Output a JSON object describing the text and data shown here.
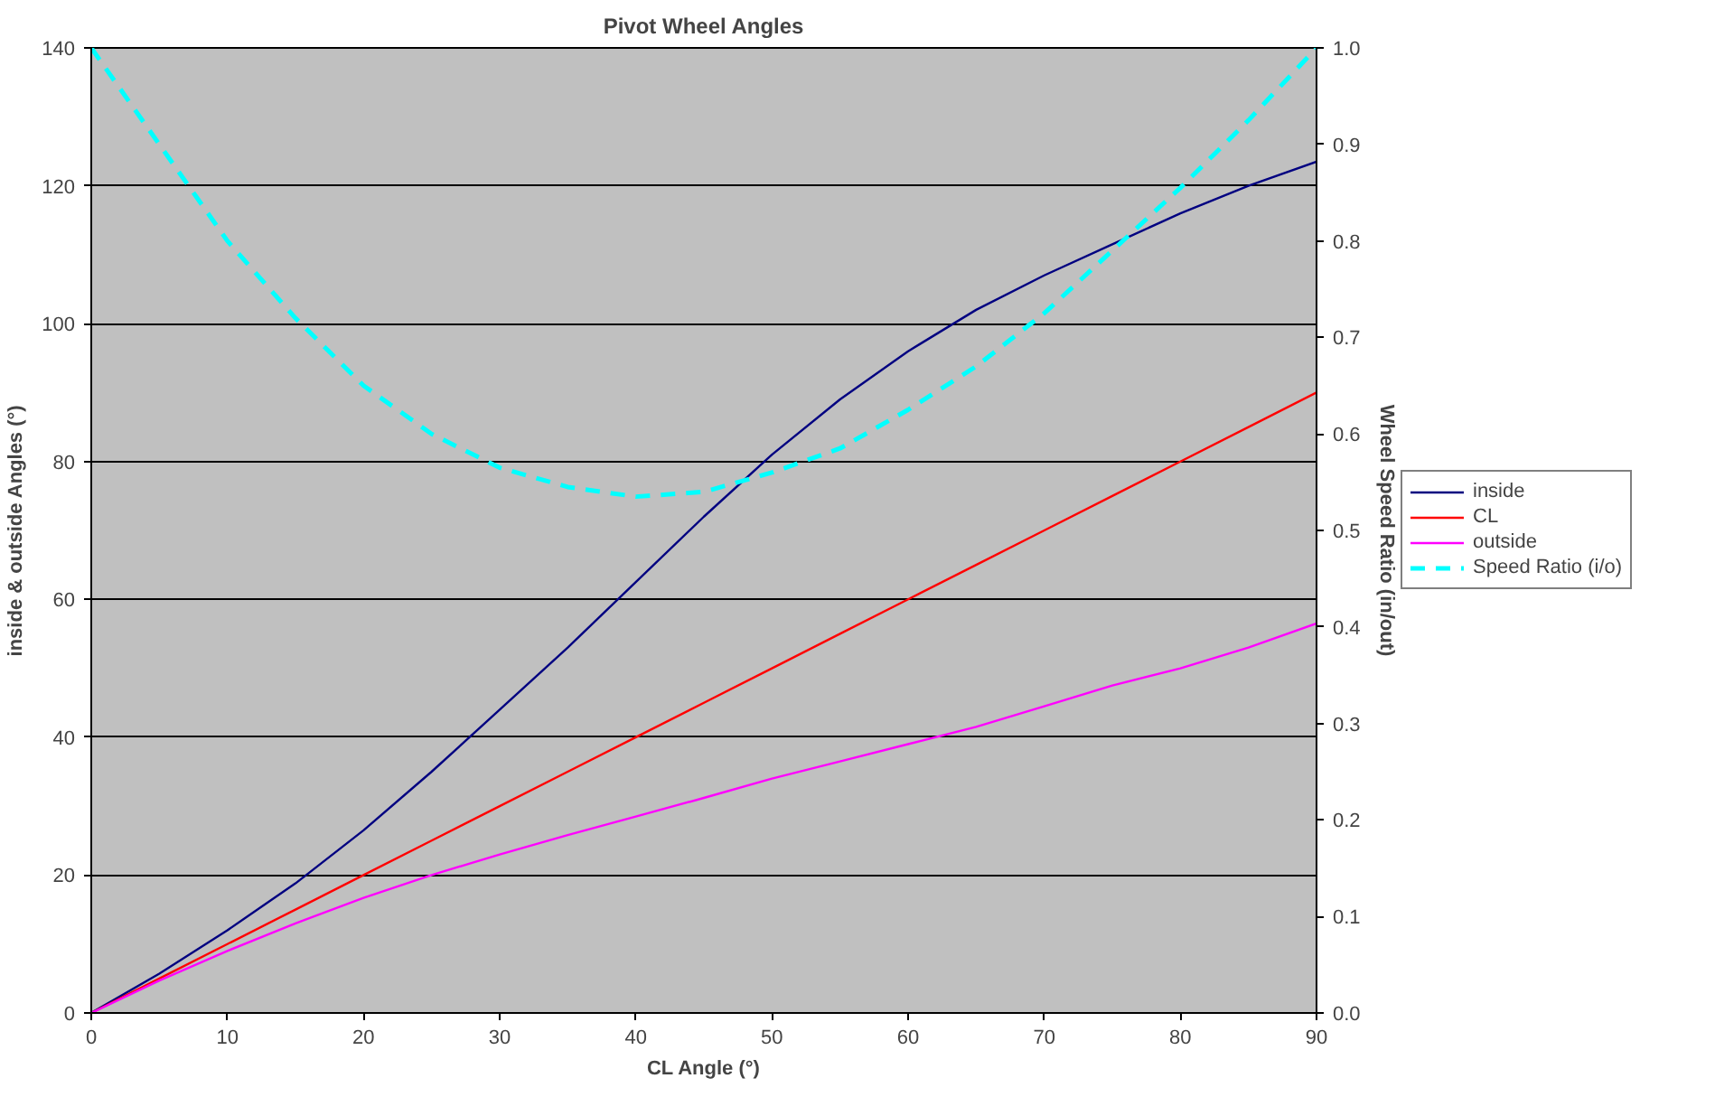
{
  "chart_data": {
    "type": "line",
    "title": "Pivot Wheel Angles",
    "xlabel": "CL Angle (°)",
    "ylabel": "inside & outside Angles (°)",
    "y2label": "Wheel Speed Ratio (in/out)",
    "x": [
      0,
      5,
      10,
      15,
      20,
      25,
      30,
      35,
      40,
      45,
      50,
      55,
      60,
      65,
      70,
      75,
      80,
      85,
      90
    ],
    "series": [
      {
        "name": "inside",
        "color": "#000080",
        "values": [
          0,
          5.7,
          12,
          18.8,
          26.5,
          35,
          44,
          53,
          62.5,
          72,
          81,
          89,
          96,
          102,
          107,
          111.5,
          116,
          120,
          123.5
        ]
      },
      {
        "name": "CL",
        "color": "#ff0000",
        "values": [
          0,
          5,
          10,
          15,
          20,
          25,
          30,
          35,
          40,
          45,
          50,
          55,
          60,
          65,
          70,
          75,
          80,
          85,
          90
        ]
      },
      {
        "name": "outside",
        "color": "#ff00ff",
        "values": [
          0,
          4.7,
          9,
          13,
          16.7,
          20,
          23,
          25.8,
          28.5,
          31.2,
          34,
          36.5,
          39,
          41.5,
          44.5,
          47.5,
          50,
          53,
          56.5
        ]
      },
      {
        "name": "Speed Ratio (i/o)",
        "color": "#00ffff",
        "axis": "y2",
        "line_style": "dashed",
        "values": [
          1.0,
          0.9,
          0.8,
          0.72,
          0.65,
          0.6,
          0.565,
          0.545,
          0.535,
          0.54,
          0.56,
          0.585,
          0.625,
          0.67,
          0.725,
          0.79,
          0.855,
          0.925,
          1.0
        ]
      }
    ],
    "xlim": [
      0,
      90
    ],
    "xticks": [
      0,
      10,
      20,
      30,
      40,
      50,
      60,
      70,
      80,
      90
    ],
    "ylim": [
      0,
      140
    ],
    "yticks": [
      0,
      20,
      40,
      60,
      80,
      100,
      120,
      140
    ],
    "y2lim": [
      0,
      1.0
    ],
    "y2ticks": [
      {
        "value": 0,
        "label": "0.0"
      },
      0.1,
      0.2,
      0.3,
      0.4,
      0.5,
      0.6,
      0.7,
      0.8,
      0.9,
      {
        "value": 1,
        "label": "1.0"
      }
    ],
    "grid": "y",
    "legend": "right",
    "marker": "none",
    "line_style": "solid"
  }
}
